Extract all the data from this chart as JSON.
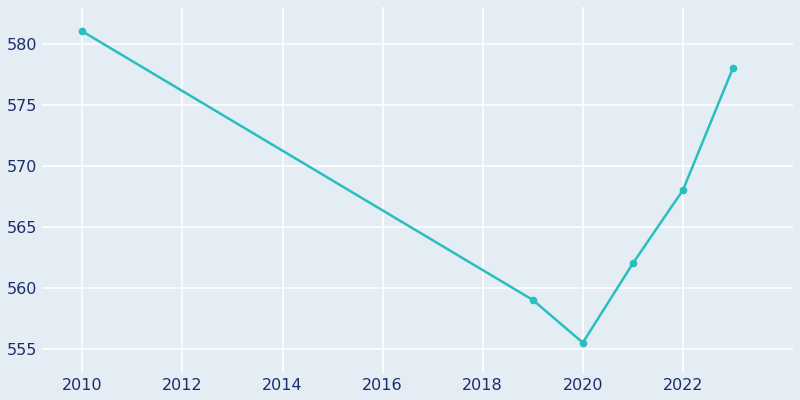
{
  "years": [
    2010,
    2019,
    2020,
    2021,
    2022,
    2023
  ],
  "population": [
    581,
    559,
    555.5,
    562,
    568,
    578
  ],
  "line_color": "#29BFBF",
  "marker_color": "#29BFBF",
  "background_color": "#E4ECF4",
  "grid_color": "#FFFFFF",
  "tick_label_color": "#1C2D6B",
  "ylim": [
    553,
    583
  ],
  "xlim": [
    2009.2,
    2024.2
  ],
  "yticks": [
    555,
    560,
    565,
    570,
    575,
    580
  ],
  "xticks": [
    2010,
    2012,
    2014,
    2016,
    2018,
    2020,
    2022
  ],
  "linewidth": 1.8,
  "markersize": 4.5,
  "tick_fontsize": 11.5
}
